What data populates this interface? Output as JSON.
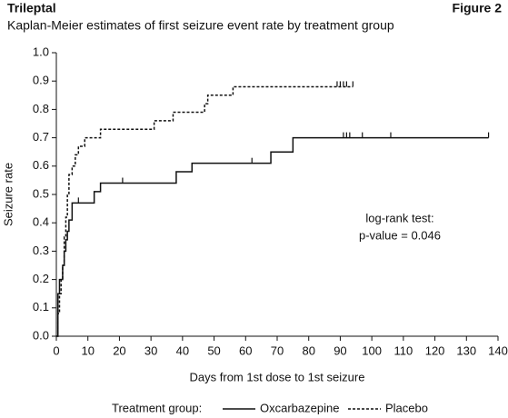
{
  "chart_data": {
    "type": "step",
    "header_left": "Trileptal",
    "header_right": "Figure 2",
    "title": "Kaplan-Meier estimates of first seizure event rate by treatment group",
    "x_label": "Days from 1st dose to 1st seizure",
    "y_label": "Seizure rate",
    "annotation": [
      "log-rank test:",
      "p-value = 0.046"
    ],
    "legend_title": "Treatment group:",
    "xlim": [
      0,
      140
    ],
    "xticks": [
      0,
      10,
      20,
      30,
      40,
      50,
      60,
      70,
      80,
      90,
      100,
      110,
      120,
      130,
      140
    ],
    "ylim": [
      0,
      1
    ],
    "yticks": [
      {
        "value": 0,
        "label": "0.0"
      },
      0.1,
      0.2,
      0.3,
      0.4,
      0.5,
      0.6,
      0.7,
      0.8,
      0.9,
      {
        "value": 1,
        "label": "1.0"
      }
    ],
    "series": [
      {
        "name": "Oxcarbazepine",
        "color": "#111111",
        "style": "solid",
        "x": [
          0,
          0.5,
          1,
          2,
          2.5,
          3,
          3.5,
          4,
          5,
          12,
          14,
          38,
          43,
          68,
          75,
          137
        ],
        "values": [
          0,
          0.15,
          0.2,
          0.25,
          0.3,
          0.34,
          0.37,
          0.41,
          0.47,
          0.51,
          0.54,
          0.58,
          0.61,
          0.65,
          0.7,
          0.7
        ],
        "censor_x": [
          7,
          21,
          62,
          91,
          92,
          93,
          97,
          106,
          137
        ],
        "censor_y": [
          0.47,
          0.54,
          0.61,
          0.7,
          0.7,
          0.7,
          0.7,
          0.7,
          0.7
        ]
      },
      {
        "name": "Placebo",
        "color": "#111111",
        "style": "dashed",
        "x": [
          0,
          0.5,
          1,
          1.5,
          2,
          2.5,
          3,
          3.5,
          4,
          5,
          6,
          7,
          9,
          14,
          31,
          37,
          47,
          48,
          56,
          94
        ],
        "values": [
          0,
          0.08,
          0.15,
          0.2,
          0.25,
          0.35,
          0.42,
          0.5,
          0.57,
          0.6,
          0.64,
          0.67,
          0.7,
          0.73,
          0.76,
          0.79,
          0.82,
          0.85,
          0.88,
          0.88
        ],
        "censor_x": [
          89,
          90,
          91,
          92,
          94
        ],
        "censor_y": [
          0.88,
          0.88,
          0.88,
          0.88,
          0.88
        ]
      }
    ]
  }
}
